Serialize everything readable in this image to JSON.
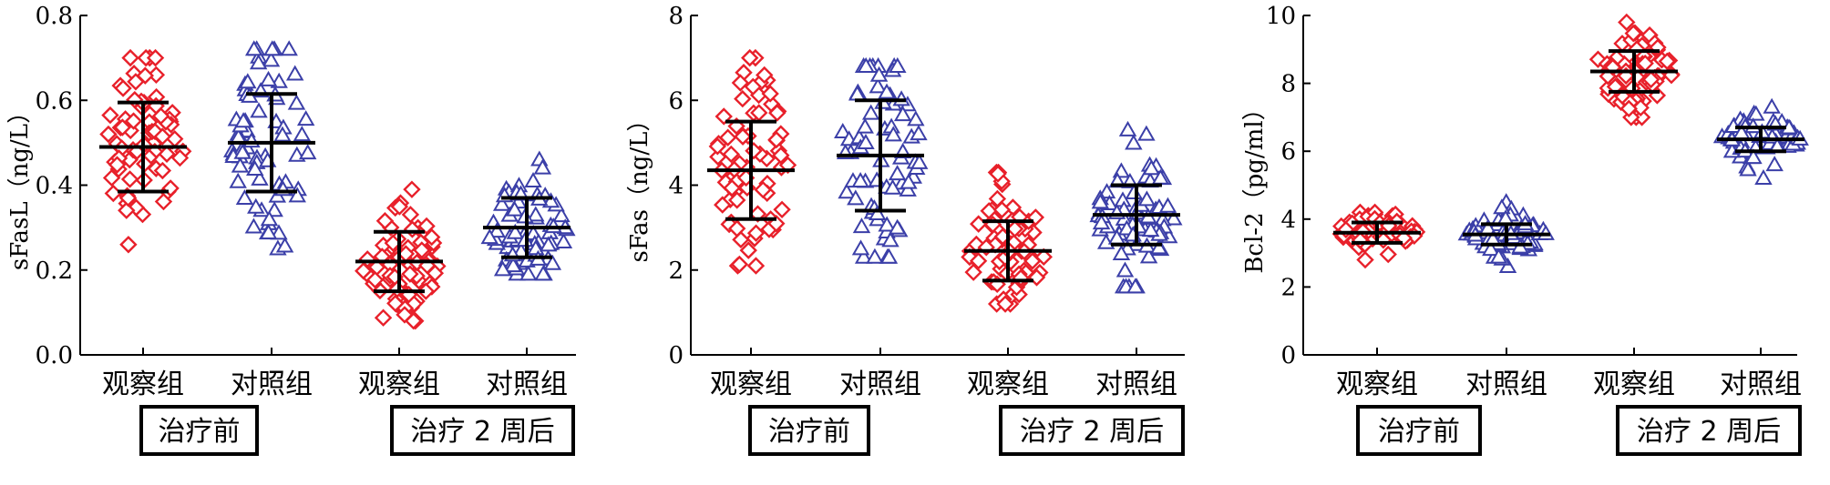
{
  "colors": {
    "observation": "#e8202a",
    "control": "#3b3fa8",
    "errorbar": "#000000"
  },
  "chart_data": [
    {
      "type": "scatter",
      "ylabel": "sFasL（ng/L）",
      "ylim": [
        0,
        0.8
      ],
      "yticks": [
        "0.0",
        "0.2",
        "0.4",
        "0.6",
        "0.8"
      ],
      "categories": [
        "观察组",
        "对照组",
        "观察组",
        "对照组"
      ],
      "groups": [
        {
          "label": "治疗前",
          "span": [
            0,
            1
          ]
        },
        {
          "label": "治疗 2 周后",
          "span": [
            2,
            3
          ]
        }
      ],
      "series": [
        {
          "marker": "diamond",
          "color": "#e8202a",
          "mean": 0.49,
          "sd": 0.105,
          "min": 0.26,
          "max": 0.7,
          "n": 70
        },
        {
          "marker": "triangle",
          "color": "#3b3fa8",
          "mean": 0.5,
          "sd": 0.115,
          "min": 0.25,
          "max": 0.72,
          "n": 70
        },
        {
          "marker": "diamond",
          "color": "#e8202a",
          "mean": 0.22,
          "sd": 0.07,
          "min": 0.08,
          "max": 0.39,
          "n": 70
        },
        {
          "marker": "triangle",
          "color": "#3b3fa8",
          "mean": 0.3,
          "sd": 0.07,
          "min": 0.19,
          "max": 0.46,
          "n": 70
        }
      ]
    },
    {
      "type": "scatter",
      "ylabel": "sFas（ng/L）",
      "ylim": [
        0,
        8
      ],
      "yticks": [
        "0",
        "2",
        "4",
        "6",
        "8"
      ],
      "categories": [
        "观察组",
        "对照组",
        "观察组",
        "对照组"
      ],
      "groups": [
        {
          "label": "治疗前",
          "span": [
            0,
            1
          ]
        },
        {
          "label": "治疗 2 周后",
          "span": [
            2,
            3
          ]
        }
      ],
      "series": [
        {
          "marker": "diamond",
          "color": "#e8202a",
          "mean": 4.35,
          "sd": 1.15,
          "min": 2.1,
          "max": 7.0,
          "n": 70
        },
        {
          "marker": "triangle",
          "color": "#3b3fa8",
          "mean": 4.7,
          "sd": 1.3,
          "min": 2.3,
          "max": 6.8,
          "n": 70
        },
        {
          "marker": "diamond",
          "color": "#e8202a",
          "mean": 2.45,
          "sd": 0.7,
          "min": 1.2,
          "max": 4.3,
          "n": 70
        },
        {
          "marker": "triangle",
          "color": "#3b3fa8",
          "mean": 3.3,
          "sd": 0.7,
          "min": 1.6,
          "max": 5.3,
          "n": 70
        }
      ]
    },
    {
      "type": "scatter",
      "ylabel": "Bcl-2（pg/ml）",
      "ylim": [
        0,
        10
      ],
      "yticks": [
        "0",
        "2",
        "4",
        "6",
        "8",
        "10"
      ],
      "categories": [
        "观察组",
        "对照组",
        "观察组",
        "对照组"
      ],
      "groups": [
        {
          "label": "治疗前",
          "span": [
            0,
            1
          ]
        },
        {
          "label": "治疗 2 周后",
          "span": [
            2,
            3
          ]
        }
      ],
      "series": [
        {
          "marker": "diamond",
          "color": "#e8202a",
          "mean": 3.6,
          "sd": 0.3,
          "min": 2.8,
          "max": 4.2,
          "n": 70
        },
        {
          "marker": "triangle",
          "color": "#3b3fa8",
          "mean": 3.55,
          "sd": 0.3,
          "min": 2.6,
          "max": 4.5,
          "n": 70
        },
        {
          "marker": "diamond",
          "color": "#e8202a",
          "mean": 8.35,
          "sd": 0.6,
          "min": 7.0,
          "max": 9.8,
          "n": 70
        },
        {
          "marker": "triangle",
          "color": "#3b3fa8",
          "mean": 6.35,
          "sd": 0.35,
          "min": 5.2,
          "max": 7.3,
          "n": 70
        }
      ]
    }
  ]
}
